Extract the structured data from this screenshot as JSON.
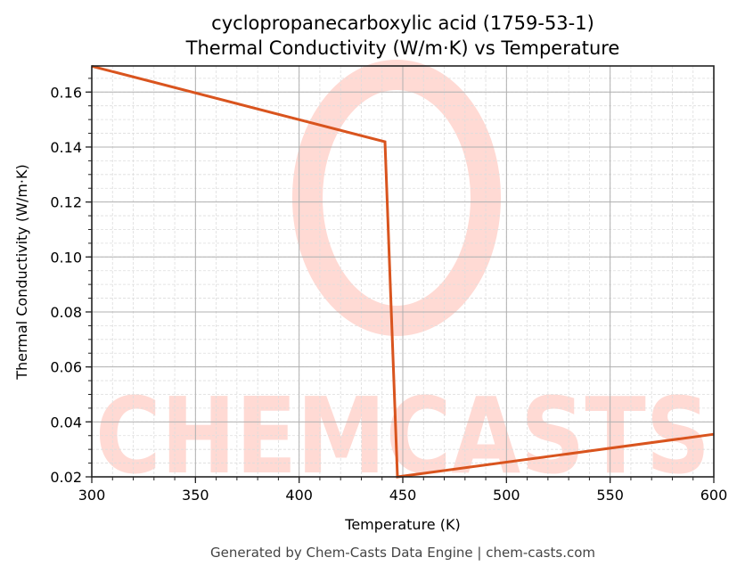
{
  "title_line1": "cyclopropanecarboxylic acid (1759-53-1)",
  "title_line2": "Thermal Conductivity (W/m·K) vs Temperature",
  "footer": "Generated by Chem-Casts Data Engine | chem-casts.com",
  "watermark": "CHEMCASTS",
  "colors": {
    "line": "#d9541e",
    "watermark": "#ffdad4",
    "grid_major": "#b0b0b0",
    "grid_minor": "#dddddd",
    "axis": "#222222"
  },
  "chart_data": {
    "type": "line",
    "title": "cyclopropanecarboxylic acid (1759-53-1)\nThermal Conductivity (W/m·K) vs Temperature",
    "xlabel": "Temperature (K)",
    "ylabel": "Thermal Conductivity (W/m·K)",
    "xlim": [
      300,
      600
    ],
    "ylim": [
      0.02,
      0.1695
    ],
    "xticks": [
      300,
      350,
      400,
      450,
      500,
      550,
      600
    ],
    "xtick_labels": [
      "300",
      "350",
      "400",
      "450",
      "500",
      "550",
      "600"
    ],
    "yticks": [
      0.02,
      0.04,
      0.06,
      0.08,
      0.1,
      0.12,
      0.14,
      0.16
    ],
    "ytick_labels": [
      "0.02",
      "0.04",
      "0.06",
      "0.08",
      "0.10",
      "0.12",
      "0.14",
      "0.16"
    ],
    "grid": true,
    "minor_grid": true,
    "legend": null,
    "series": [
      {
        "name": "Thermal Conductivity",
        "x": [
          300,
          441.4,
          447.4,
          600
        ],
        "y": [
          0.1694,
          0.1419,
          0.02,
          0.0355
        ]
      }
    ]
  }
}
